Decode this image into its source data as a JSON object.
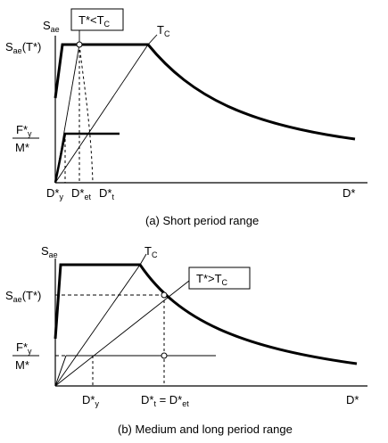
{
  "panel_a": {
    "y_axis": {
      "symbol": "S",
      "subscript": "ae"
    },
    "y_level_label": {
      "text": "S",
      "subscript": "ae",
      "suffix": "(T*)"
    },
    "force_ratio": {
      "numerator": "F*",
      "num_sub": "y",
      "denominator": "M*"
    },
    "x_axis_label": "D*",
    "tick_dy": {
      "text": "D*",
      "subscript": "y"
    },
    "tick_det": {
      "text": "D*",
      "subscript": "et"
    },
    "tick_dt": {
      "text": "D*",
      "subscript": "t"
    },
    "corner_label": {
      "text": "T",
      "subscript": "C"
    },
    "condition_box": {
      "text": "T*<T",
      "subscript": "C"
    },
    "caption": "(a) Short period range"
  },
  "panel_b": {
    "y_axis": {
      "symbol": "S",
      "subscript": "ae"
    },
    "y_level_label": {
      "text": "S",
      "subscript": "ae",
      "suffix": "(T*)"
    },
    "force_ratio": {
      "numerator": "F*",
      "num_sub": "y",
      "denominator": "M*"
    },
    "x_axis_label": "D*",
    "tick_dy": {
      "text": "D*",
      "subscript": "y"
    },
    "tick_equal": {
      "left": "D*",
      "left_sub": "t",
      "eq": " = D*",
      "right_sub": "et"
    },
    "corner_label": {
      "text": "T",
      "subscript": "C"
    },
    "condition_box": {
      "text": "T*>T",
      "subscript": "C"
    },
    "caption": "(b) Medium and long period range"
  },
  "colors": {
    "ink": "#000000",
    "fill": "#ffffff"
  }
}
